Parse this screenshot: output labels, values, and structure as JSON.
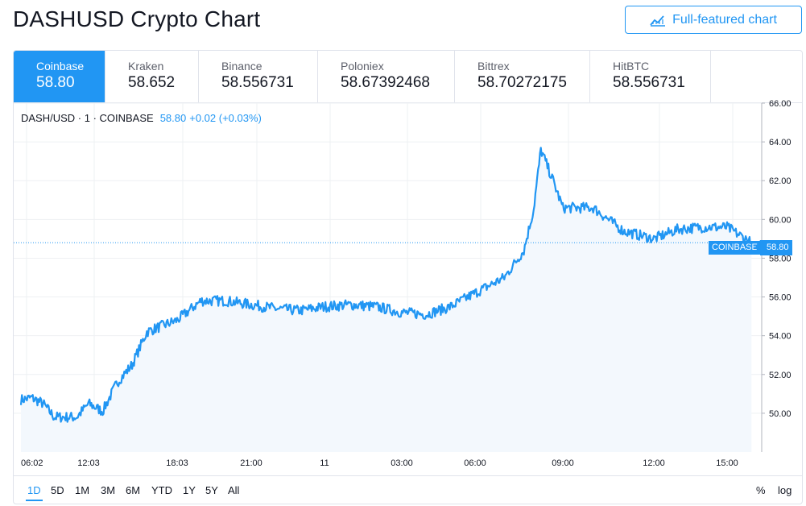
{
  "page": {
    "title": "DASHUSD Crypto Chart"
  },
  "toolbar": {
    "full_chart_label": "Full-featured chart",
    "full_chart_icon": "chart-line-icon"
  },
  "exchanges": [
    {
      "name": "Coinbase",
      "price": "58.80",
      "active": true
    },
    {
      "name": "Kraken",
      "price": "58.652",
      "active": false
    },
    {
      "name": "Binance",
      "price": "58.556731",
      "active": false
    },
    {
      "name": "Poloniex",
      "price": "58.67392468",
      "active": false
    },
    {
      "name": "Bittrex",
      "price": "58.70272175",
      "active": false
    },
    {
      "name": "HitBTC",
      "price": "58.556731",
      "active": false
    }
  ],
  "legend": {
    "symbol": "DASH/USD · 1 · COINBASE",
    "value": "58.80",
    "change": "+0.02 (+0.03%)"
  },
  "price_line": {
    "label": "COINBASE",
    "value": "58.80"
  },
  "ranges": [
    {
      "label": "1D",
      "active": true
    },
    {
      "label": "5D",
      "active": false
    },
    {
      "label": "1M",
      "active": false
    },
    {
      "label": "3M",
      "active": false
    },
    {
      "label": "6M",
      "active": false
    },
    {
      "label": "YTD",
      "active": false
    },
    {
      "label": "1Y",
      "active": false
    },
    {
      "label": "5Y",
      "active": false
    },
    {
      "label": "All",
      "active": false
    }
  ],
  "scale_options": {
    "percent": "%",
    "log": "log"
  },
  "colors": {
    "accent": "#2196f3",
    "grid": "#eef0f3",
    "fill": "#f3f8fd",
    "text": "#131722"
  },
  "chart_data": {
    "type": "line",
    "title": "",
    "xlabel": "",
    "ylabel": "",
    "ylim": [
      48.0,
      66.0
    ],
    "y_ticks": [
      "50.00",
      "52.00",
      "54.00",
      "56.00",
      "58.00",
      "60.00",
      "62.00",
      "64.00",
      "66.00"
    ],
    "x_ticks": [
      "06:02",
      "12:03",
      "18:03",
      "21:00",
      "11",
      "03:00",
      "06:00",
      "09:00",
      "12:00",
      "15:00"
    ],
    "series": [
      {
        "values": [
          [
            "06:02",
            50.7
          ],
          [
            "07:00",
            50.8
          ],
          [
            "08:00",
            50.5
          ],
          [
            "09:00",
            49.8
          ],
          [
            "10:00",
            49.8
          ],
          [
            "11:00",
            49.8
          ],
          [
            "12:03",
            50.5
          ],
          [
            "13:00",
            50.1
          ],
          [
            "14:00",
            51.6
          ],
          [
            "15:00",
            52.5
          ],
          [
            "16:00",
            54.2
          ],
          [
            "17:00",
            54.5
          ],
          [
            "18:03",
            54.8
          ],
          [
            "19:00",
            55.8
          ],
          [
            "20:00",
            55.8
          ],
          [
            "21:00",
            55.6
          ],
          [
            "22:00",
            55.4
          ],
          [
            "23:00",
            55.3
          ],
          [
            "00:00",
            55.5
          ],
          [
            "01:00",
            55.6
          ],
          [
            "02:00",
            55.5
          ],
          [
            "03:00",
            55.2
          ],
          [
            "04:00",
            55.1
          ],
          [
            "05:00",
            55.5
          ],
          [
            "06:00",
            56.2
          ],
          [
            "07:00",
            57.0
          ],
          [
            "07:40",
            58.4
          ],
          [
            "08:00",
            60.5
          ],
          [
            "08:15",
            63.6
          ],
          [
            "08:40",
            62.0
          ],
          [
            "09:00",
            60.6
          ],
          [
            "10:00",
            60.6
          ],
          [
            "11:00",
            59.4
          ],
          [
            "12:00",
            59.0
          ],
          [
            "13:00",
            59.5
          ],
          [
            "14:00",
            59.6
          ],
          [
            "15:00",
            59.6
          ],
          [
            "16:00",
            58.8
          ]
        ]
      }
    ]
  }
}
